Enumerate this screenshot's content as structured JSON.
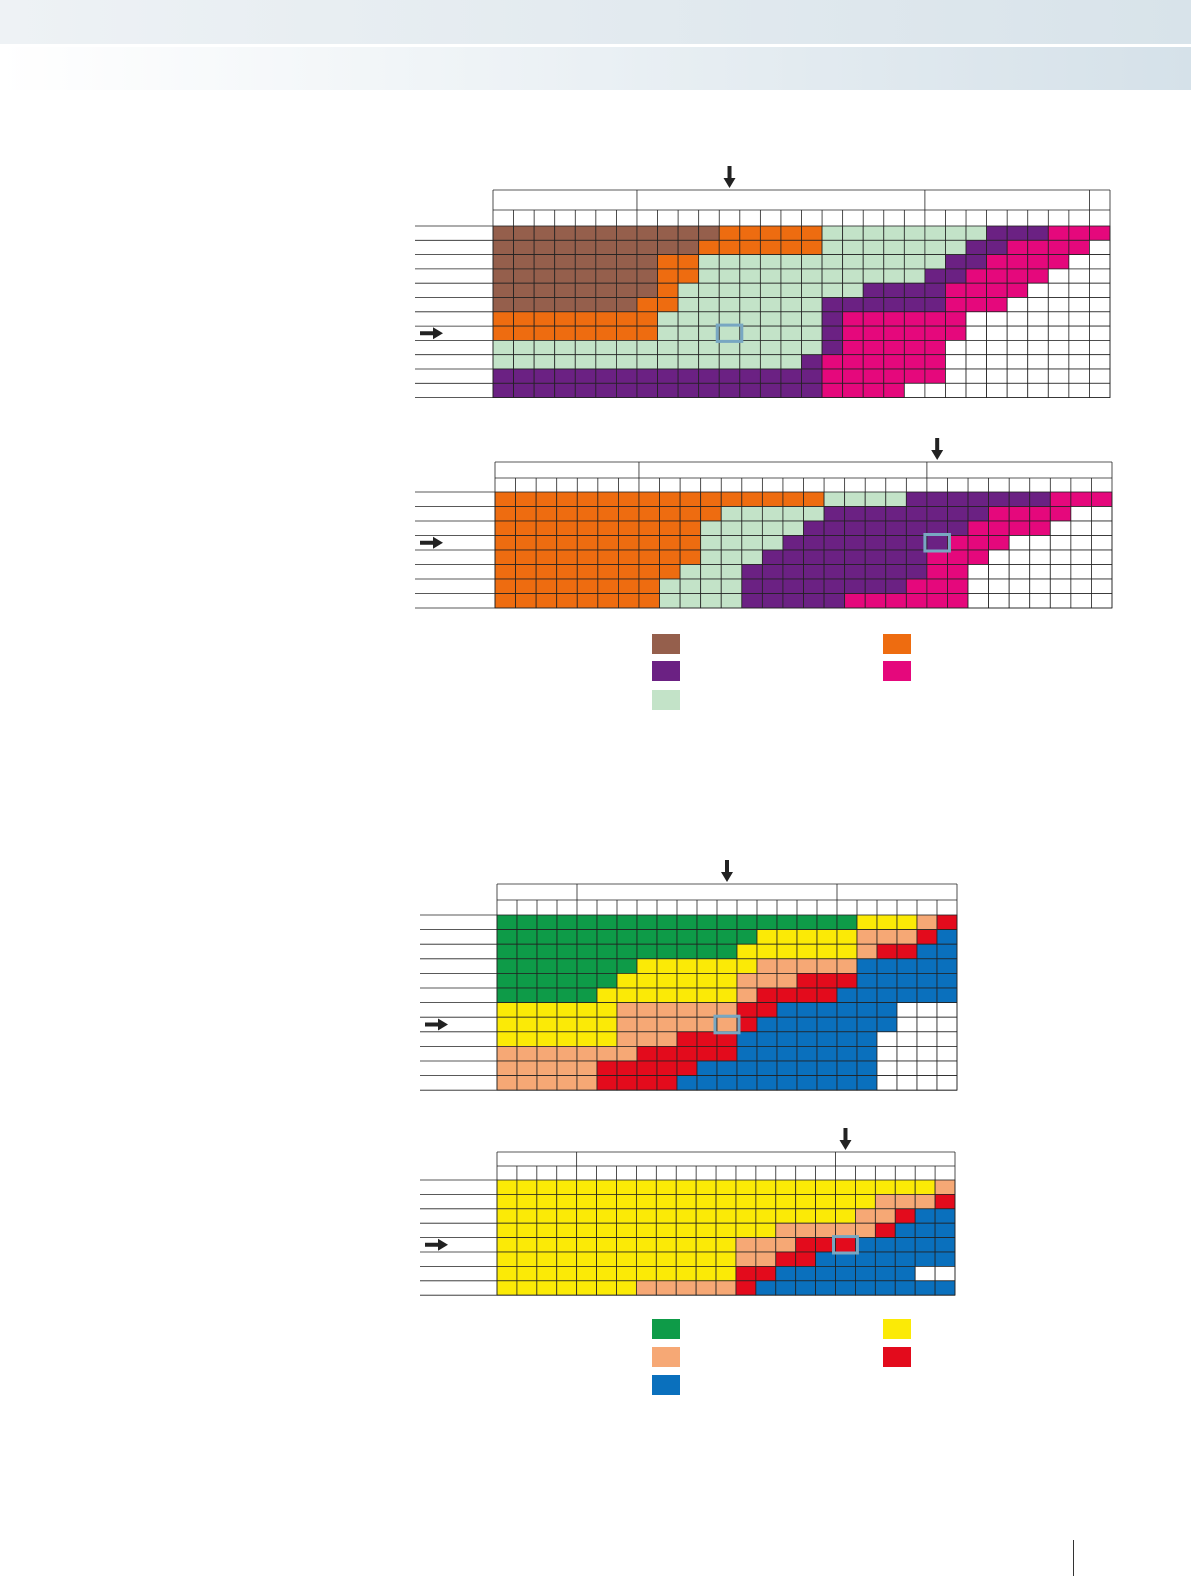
{
  "palette": {
    "B": "#955f4c",
    "O": "#ee6c10",
    "G": "#c3e3c8",
    "P": "#6b2183",
    "M": "#e5087c",
    "W": "#ffffff",
    "D": "#0e9b48",
    "Y": "#fbea06",
    "S": "#f6a875",
    "R": "#e30b1c",
    "U": "#0a70bd"
  },
  "grids": [
    {
      "groups": [
        7,
        14,
        8,
        1
      ],
      "highlight": [
        7,
        11
      ],
      "arrow_row": 7,
      "arrow_col": 11,
      "rows": [
        [
          [
            "B",
            11
          ],
          [
            "O",
            5
          ],
          [
            "G",
            8
          ],
          [
            "P",
            3
          ],
          [
            "M",
            3
          ]
        ],
        [
          [
            "B",
            10
          ],
          [
            "O",
            6
          ],
          [
            "G",
            7
          ],
          [
            "P",
            2
          ],
          [
            "M",
            4
          ],
          [
            "W",
            1
          ]
        ],
        [
          [
            "B",
            8
          ],
          [
            "O",
            2
          ],
          [
            "G",
            12
          ],
          [
            "P",
            2
          ],
          [
            "M",
            4
          ],
          [
            "W",
            2
          ]
        ],
        [
          [
            "B",
            8
          ],
          [
            "O",
            2
          ],
          [
            "G",
            11
          ],
          [
            "P",
            2
          ],
          [
            "M",
            4
          ],
          [
            "W",
            3
          ]
        ],
        [
          [
            "B",
            8
          ],
          [
            "O",
            1
          ],
          [
            "G",
            9
          ],
          [
            "P",
            4
          ],
          [
            "M",
            4
          ],
          [
            "W",
            4
          ]
        ],
        [
          [
            "B",
            7
          ],
          [
            "O",
            2
          ],
          [
            "G",
            7
          ],
          [
            "P",
            6
          ],
          [
            "M",
            3
          ],
          [
            "W",
            5
          ]
        ],
        [
          [
            "O",
            8
          ],
          [
            "G",
            8
          ],
          [
            "P",
            1
          ],
          [
            "M",
            6
          ],
          [
            "W",
            7
          ]
        ],
        [
          [
            "O",
            8
          ],
          [
            "G",
            8
          ],
          [
            "P",
            1
          ],
          [
            "M",
            6
          ],
          [
            "W",
            7
          ]
        ],
        [
          [
            "G",
            16
          ],
          [
            "P",
            1
          ],
          [
            "M",
            5
          ],
          [
            "W",
            8
          ]
        ],
        [
          [
            "G",
            15
          ],
          [
            "P",
            1
          ],
          [
            "M",
            6
          ],
          [
            "W",
            8
          ]
        ],
        [
          [
            "P",
            16
          ],
          [
            "M",
            6
          ],
          [
            "W",
            8
          ]
        ],
        [
          [
            "P",
            16
          ],
          [
            "M",
            4
          ],
          [
            "W",
            10
          ]
        ]
      ]
    },
    {
      "groups": [
        7,
        14,
        9
      ],
      "highlight": [
        3,
        21
      ],
      "arrow_row": 3,
      "arrow_col": 21,
      "rows": [
        [
          [
            "O",
            16
          ],
          [
            "G",
            4
          ],
          [
            "P",
            7
          ],
          [
            "M",
            3
          ]
        ],
        [
          [
            "O",
            11
          ],
          [
            "G",
            5
          ],
          [
            "P",
            8
          ],
          [
            "M",
            4
          ],
          [
            "W",
            2
          ]
        ],
        [
          [
            "O",
            10
          ],
          [
            "G",
            5
          ],
          [
            "P",
            8
          ],
          [
            "M",
            4
          ],
          [
            "W",
            3
          ]
        ],
        [
          [
            "O",
            10
          ],
          [
            "G",
            4
          ],
          [
            "P",
            8
          ],
          [
            "M",
            3
          ],
          [
            "W",
            5
          ]
        ],
        [
          [
            "O",
            10
          ],
          [
            "G",
            3
          ],
          [
            "P",
            8
          ],
          [
            "M",
            3
          ],
          [
            "W",
            6
          ]
        ],
        [
          [
            "O",
            9
          ],
          [
            "G",
            3
          ],
          [
            "P",
            9
          ],
          [
            "M",
            2
          ],
          [
            "W",
            7
          ]
        ],
        [
          [
            "O",
            8
          ],
          [
            "G",
            4
          ],
          [
            "P",
            8
          ],
          [
            "M",
            3
          ],
          [
            "W",
            7
          ]
        ],
        [
          [
            "O",
            8
          ],
          [
            "G",
            4
          ],
          [
            "P",
            5
          ],
          [
            "M",
            6
          ],
          [
            "W",
            7
          ]
        ]
      ]
    },
    {
      "groups": [
        4,
        13,
        6
      ],
      "highlight": [
        7,
        11
      ],
      "arrow_row": 7,
      "arrow_col": 11,
      "rows": [
        [
          [
            "D",
            18
          ],
          [
            "Y",
            3
          ],
          [
            "S",
            1
          ],
          [
            "R",
            1
          ]
        ],
        [
          [
            "D",
            13
          ],
          [
            "Y",
            5
          ],
          [
            "S",
            3
          ],
          [
            "R",
            1
          ],
          [
            "U",
            1
          ]
        ],
        [
          [
            "D",
            12
          ],
          [
            "Y",
            6
          ],
          [
            "S",
            1
          ],
          [
            "R",
            2
          ],
          [
            "U",
            2
          ]
        ],
        [
          [
            "D",
            7
          ],
          [
            "Y",
            6
          ],
          [
            "S",
            5
          ],
          [
            "U",
            5
          ]
        ],
        [
          [
            "D",
            6
          ],
          [
            "Y",
            6
          ],
          [
            "S",
            3
          ],
          [
            "R",
            3
          ],
          [
            "U",
            5
          ]
        ],
        [
          [
            "D",
            5
          ],
          [
            "Y",
            7
          ],
          [
            "S",
            1
          ],
          [
            "R",
            4
          ],
          [
            "U",
            6
          ]
        ],
        [
          [
            "Y",
            6
          ],
          [
            "S",
            6
          ],
          [
            "R",
            2
          ],
          [
            "U",
            6
          ],
          [
            "W",
            3
          ]
        ],
        [
          [
            "Y",
            6
          ],
          [
            "S",
            6
          ],
          [
            "R",
            1
          ],
          [
            "U",
            7
          ],
          [
            "W",
            3
          ]
        ],
        [
          [
            "Y",
            6
          ],
          [
            "S",
            3
          ],
          [
            "R",
            3
          ],
          [
            "U",
            7
          ],
          [
            "W",
            4
          ]
        ],
        [
          [
            "S",
            7
          ],
          [
            "R",
            5
          ],
          [
            "U",
            7
          ],
          [
            "W",
            4
          ]
        ],
        [
          [
            "S",
            5
          ],
          [
            "R",
            5
          ],
          [
            "U",
            9
          ],
          [
            "W",
            4
          ]
        ],
        [
          [
            "S",
            5
          ],
          [
            "R",
            4
          ],
          [
            "U",
            10
          ],
          [
            "W",
            4
          ]
        ]
      ]
    },
    {
      "groups": [
        4,
        13,
        6
      ],
      "highlight": [
        4,
        17
      ],
      "arrow_row": 4,
      "arrow_col": 17,
      "rows": [
        [
          [
            "Y",
            22
          ],
          [
            "S",
            1
          ]
        ],
        [
          [
            "Y",
            19
          ],
          [
            "S",
            3
          ],
          [
            "R",
            1
          ]
        ],
        [
          [
            "Y",
            18
          ],
          [
            "S",
            2
          ],
          [
            "R",
            1
          ],
          [
            "U",
            2
          ]
        ],
        [
          [
            "Y",
            14
          ],
          [
            "S",
            5
          ],
          [
            "R",
            1
          ],
          [
            "U",
            3
          ]
        ],
        [
          [
            "Y",
            12
          ],
          [
            "S",
            3
          ],
          [
            "R",
            3
          ],
          [
            "U",
            5
          ]
        ],
        [
          [
            "Y",
            12
          ],
          [
            "S",
            2
          ],
          [
            "R",
            2
          ],
          [
            "U",
            7
          ]
        ],
        [
          [
            "Y",
            12
          ],
          [
            "R",
            2
          ],
          [
            "U",
            7
          ],
          [
            "W",
            2
          ]
        ],
        [
          [
            "Y",
            7
          ],
          [
            "S",
            5
          ],
          [
            "R",
            1
          ],
          [
            "U",
            10
          ]
        ]
      ]
    }
  ],
  "legends": [
    [
      "B",
      "O",
      "P",
      "M",
      "G"
    ],
    [
      "D",
      "Y",
      "S",
      "R",
      "U"
    ]
  ]
}
